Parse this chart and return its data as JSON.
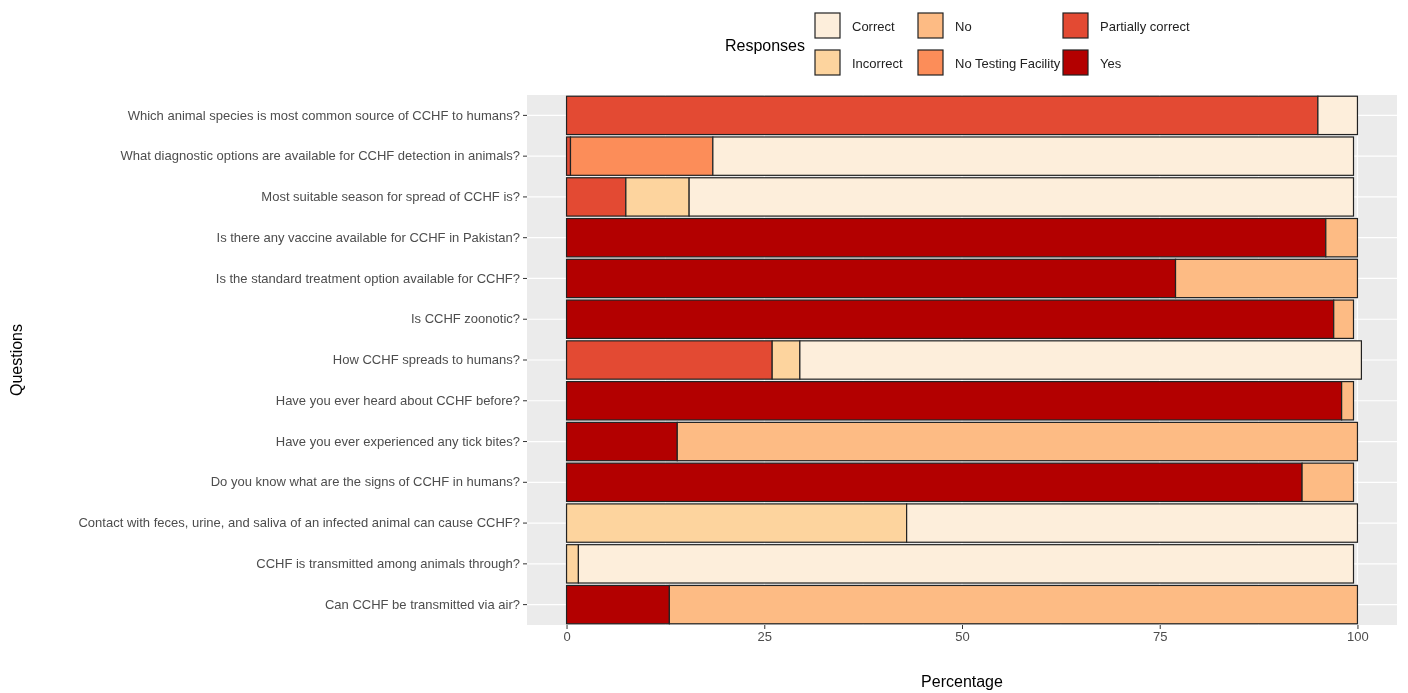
{
  "chart_data": {
    "type": "bar",
    "orientation": "horizontal",
    "stacked": true,
    "xlabel": "Percentage",
    "ylabel": "Questions",
    "legend_title": "Responses",
    "legend": "top",
    "grid": true,
    "categories": [
      "Which animal species is most common source of CCHF to humans?",
      "What diagnostic options are available for CCHF detection in animals?",
      "Most suitable season for spread of CCHF is?",
      "Is there any vaccine available for CCHF in Pakistan?",
      "Is the standard treatment option available for CCHF?",
      "Is CCHF zoonotic?",
      "How CCHF spreads to humans?",
      "Have you ever heard about CCHF before?",
      "Have you ever experienced any tick bites?",
      "Do you know what are the signs of CCHF in humans?",
      "Contact with feces, urine, and saliva of an infected animal can cause CCHF?",
      "CCHF is transmitted among animals through?",
      "Can CCHF be transmitted via air?"
    ],
    "xlim": [
      -5,
      105
    ],
    "xticks": [
      0,
      25,
      50,
      75,
      100
    ],
    "series": [
      {
        "name": "Yes",
        "color": "#b30000",
        "values": [
          null,
          null,
          null,
          96,
          77,
          97,
          null,
          98,
          14,
          93,
          null,
          null,
          13
        ]
      },
      {
        "name": "Partially correct",
        "color": "#e34a33",
        "values": [
          95,
          0.5,
          7.5,
          null,
          null,
          null,
          26,
          null,
          null,
          null,
          null,
          null,
          null
        ]
      },
      {
        "name": "No Testing Facility",
        "color": "#fc8d59",
        "values": [
          null,
          18,
          null,
          null,
          null,
          null,
          null,
          null,
          null,
          null,
          null,
          null,
          null
        ]
      },
      {
        "name": "No",
        "color": "#fdbb84",
        "values": [
          null,
          null,
          null,
          4,
          23,
          2.5,
          null,
          1.5,
          86,
          6.5,
          null,
          null,
          87
        ]
      },
      {
        "name": "Incorrect",
        "color": "#fdd49e",
        "values": [
          null,
          null,
          8,
          null,
          null,
          null,
          3.5,
          null,
          null,
          null,
          43,
          1.5,
          null
        ]
      },
      {
        "name": "Correct",
        "color": "#fdeedb",
        "values": [
          5,
          81,
          84,
          null,
          null,
          null,
          71,
          null,
          null,
          null,
          57,
          98,
          null
        ]
      }
    ]
  }
}
